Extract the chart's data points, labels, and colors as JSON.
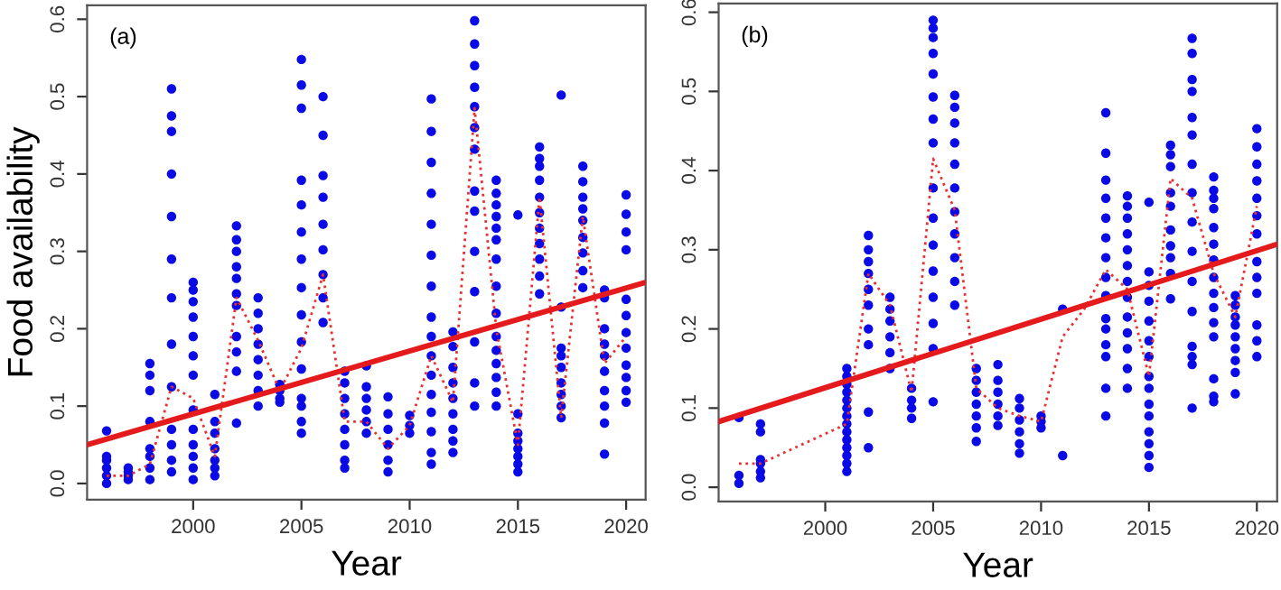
{
  "chart_data": [
    {
      "type": "scatter",
      "title": null,
      "annotations": [
        "(a)"
      ],
      "xlabel": "Year",
      "ylabel": "Food availability",
      "xlim": [
        1995.1,
        2020.9
      ],
      "ylim": [
        -0.021,
        0.618
      ],
      "xticks": [
        2000,
        2005,
        2010,
        2015,
        2020
      ],
      "yticks": [
        {
          "value": 0,
          "label": "0.0"
        },
        0.1,
        0.2,
        0.3,
        0.4,
        0.5,
        0.6
      ],
      "grid": false,
      "legend": false,
      "series": [
        {
          "color": "#0a0ae6",
          "marker": "circle",
          "x": [
            1996,
            1996,
            1996,
            1996,
            1996,
            1996,
            1997,
            1997,
            1997,
            1997,
            1998,
            1998,
            1998,
            1998,
            1998,
            1998,
            1998,
            1998,
            1999,
            1999,
            1999,
            1999,
            1999,
            1999,
            1999,
            1999,
            1999,
            1999,
            1999,
            1999,
            1999,
            2000,
            2000,
            2000,
            2000,
            2000,
            2000,
            2000,
            2000,
            2000,
            2000,
            2000,
            2000,
            2000,
            2001,
            2001,
            2001,
            2001,
            2001,
            2001,
            2001,
            2002,
            2002,
            2002,
            2002,
            2002,
            2002,
            2002,
            2002,
            2002,
            2002,
            2002,
            2003,
            2003,
            2003,
            2003,
            2003,
            2003,
            2003,
            2003,
            2004,
            2004,
            2004,
            2004,
            2005,
            2005,
            2005,
            2005,
            2005,
            2005,
            2005,
            2005,
            2005,
            2005,
            2005,
            2005,
            2005,
            2005,
            2005,
            2006,
            2006,
            2006,
            2006,
            2006,
            2006,
            2006,
            2006,
            2006,
            2007,
            2007,
            2007,
            2007,
            2007,
            2007,
            2007,
            2007,
            2008,
            2008,
            2008,
            2008,
            2008,
            2008,
            2009,
            2009,
            2009,
            2009,
            2009,
            2009,
            2010,
            2010,
            2010,
            2011,
            2011,
            2011,
            2011,
            2011,
            2011,
            2011,
            2011,
            2011,
            2011,
            2011,
            2011,
            2011,
            2011,
            2011,
            2011,
            2012,
            2012,
            2012,
            2012,
            2012,
            2012,
            2012,
            2012,
            2012,
            2013,
            2013,
            2013,
            2013,
            2013,
            2013,
            2013,
            2013,
            2013,
            2013,
            2013,
            2013,
            2013,
            2013,
            2014,
            2014,
            2014,
            2014,
            2014,
            2014,
            2014,
            2014,
            2014,
            2014,
            2014,
            2014,
            2014,
            2014,
            2014,
            2015,
            2015,
            2015,
            2015,
            2015,
            2015,
            2015,
            2015,
            2016,
            2016,
            2016,
            2016,
            2016,
            2016,
            2016,
            2016,
            2016,
            2016,
            2016,
            2017,
            2017,
            2017,
            2017,
            2017,
            2017,
            2017,
            2017,
            2017,
            2018,
            2018,
            2018,
            2018,
            2018,
            2018,
            2018,
            2018,
            2018,
            2019,
            2019,
            2019,
            2019,
            2019,
            2019,
            2019,
            2019,
            2019,
            2019,
            2020,
            2020,
            2020,
            2020,
            2020,
            2020,
            2020,
            2020,
            2020,
            2020,
            2020,
            2020
          ],
          "values": [
            0.0,
            0.01,
            0.02,
            0.03,
            0.035,
            0.068,
            0.005,
            0.01,
            0.015,
            0.02,
            0.005,
            0.02,
            0.035,
            0.045,
            0.08,
            0.12,
            0.14,
            0.155,
            0.015,
            0.03,
            0.05,
            0.07,
            0.125,
            0.18,
            0.24,
            0.29,
            0.345,
            0.4,
            0.455,
            0.475,
            0.51,
            0.005,
            0.02,
            0.035,
            0.05,
            0.07,
            0.095,
            0.14,
            0.165,
            0.19,
            0.215,
            0.235,
            0.25,
            0.26,
            0.01,
            0.02,
            0.03,
            0.045,
            0.065,
            0.08,
            0.115,
            0.078,
            0.145,
            0.17,
            0.19,
            0.23,
            0.245,
            0.265,
            0.28,
            0.3,
            0.315,
            0.333,
            0.1,
            0.12,
            0.14,
            0.16,
            0.18,
            0.2,
            0.22,
            0.24,
            0.105,
            0.11,
            0.12,
            0.128,
            0.065,
            0.08,
            0.1,
            0.11,
            0.148,
            0.183,
            0.218,
            0.253,
            0.29,
            0.325,
            0.36,
            0.392,
            0.485,
            0.515,
            0.548,
            0.208,
            0.24,
            0.27,
            0.302,
            0.335,
            0.37,
            0.398,
            0.45,
            0.5,
            0.02,
            0.03,
            0.05,
            0.07,
            0.09,
            0.11,
            0.13,
            0.145,
            0.065,
            0.08,
            0.095,
            0.11,
            0.125,
            0.152,
            0.015,
            0.03,
            0.05,
            0.07,
            0.09,
            0.112,
            0.065,
            0.075,
            0.088,
            0.025,
            0.04,
            0.067,
            0.092,
            0.115,
            0.14,
            0.165,
            0.19,
            0.215,
            0.255,
            0.295,
            0.335,
            0.375,
            0.415,
            0.455,
            0.497,
            0.04,
            0.055,
            0.07,
            0.09,
            0.11,
            0.13,
            0.15,
            0.177,
            0.196,
            0.1,
            0.13,
            0.183,
            0.248,
            0.3,
            0.352,
            0.378,
            0.432,
            0.46,
            0.487,
            0.512,
            0.54,
            0.568,
            0.598,
            0.1,
            0.118,
            0.137,
            0.155,
            0.172,
            0.19,
            0.22,
            0.255,
            0.29,
            0.315,
            0.33,
            0.345,
            0.36,
            0.375,
            0.392,
            0.015,
            0.025,
            0.035,
            0.045,
            0.055,
            0.065,
            0.09,
            0.347,
            0.245,
            0.268,
            0.29,
            0.31,
            0.33,
            0.35,
            0.37,
            0.392,
            0.41,
            0.42,
            0.435,
            0.085,
            0.1,
            0.115,
            0.13,
            0.15,
            0.165,
            0.175,
            0.228,
            0.502,
            0.253,
            0.275,
            0.298,
            0.318,
            0.34,
            0.355,
            0.37,
            0.39,
            0.41,
            0.038,
            0.078,
            0.1,
            0.12,
            0.145,
            0.165,
            0.18,
            0.2,
            0.24,
            0.25,
            0.105,
            0.12,
            0.137,
            0.153,
            0.175,
            0.195,
            0.217,
            0.238,
            0.302,
            0.325,
            0.348,
            0.373
          ]
        },
        {
          "type": "line",
          "color": "#e83030",
          "line_style": "dotted",
          "x": [
            1996,
            1997,
            1998,
            1999,
            2000,
            2001,
            2002,
            2003,
            2004,
            2005,
            2006,
            2007,
            2008,
            2009,
            2010,
            2011,
            2012,
            2013,
            2014,
            2015,
            2016,
            2017,
            2018,
            2019,
            2020
          ],
          "values": [
            0.01,
            0.01,
            0.025,
            0.125,
            0.11,
            0.035,
            0.24,
            0.185,
            0.12,
            0.175,
            0.27,
            0.08,
            0.08,
            0.045,
            0.075,
            0.165,
            0.105,
            0.485,
            0.2,
            0.05,
            0.37,
            0.085,
            0.345,
            0.155,
            0.19
          ]
        },
        {
          "type": "line",
          "color": "#e41a1c",
          "line_style": "solid",
          "x": [
            1995.1,
            2020.9
          ],
          "values": [
            0.05,
            0.26
          ]
        }
      ]
    },
    {
      "type": "scatter",
      "title": null,
      "annotations": [
        "(b)"
      ],
      "xlabel": "Year",
      "xlim": [
        1995.06,
        2020.94
      ],
      "ylim": [
        -0.018,
        0.611
      ],
      "xticks": [
        2000,
        2005,
        2010,
        2015,
        2020
      ],
      "yticks": [
        {
          "value": 0,
          "label": "0.0"
        },
        0.1,
        0.2,
        0.3,
        0.4,
        0.5,
        0.6
      ],
      "grid": false,
      "legend": false,
      "series": [
        {
          "color": "#0a0ae6",
          "marker": "circle",
          "x": [
            1996,
            1996,
            1996,
            1997,
            1997,
            1997,
            1997,
            1997,
            1997,
            2001,
            2001,
            2001,
            2001,
            2001,
            2001,
            2001,
            2001,
            2001,
            2001,
            2001,
            2001,
            2001,
            2001,
            2002,
            2002,
            2002,
            2002,
            2002,
            2002,
            2002,
            2002,
            2002,
            2002,
            2003,
            2003,
            2003,
            2003,
            2003,
            2003,
            2004,
            2004,
            2004,
            2004,
            2005,
            2005,
            2005,
            2005,
            2005,
            2005,
            2005,
            2005,
            2005,
            2005,
            2005,
            2005,
            2005,
            2005,
            2005,
            2005,
            2006,
            2006,
            2006,
            2006,
            2006,
            2006,
            2006,
            2006,
            2006,
            2006,
            2006,
            2007,
            2007,
            2007,
            2007,
            2007,
            2007,
            2007,
            2008,
            2008,
            2008,
            2008,
            2008,
            2008,
            2009,
            2009,
            2009,
            2009,
            2009,
            2009,
            2010,
            2010,
            2010,
            2011,
            2011,
            2013,
            2013,
            2013,
            2013,
            2013,
            2013,
            2013,
            2013,
            2013,
            2013,
            2013,
            2013,
            2013,
            2013,
            2013,
            2014,
            2014,
            2014,
            2014,
            2014,
            2014,
            2014,
            2014,
            2014,
            2014,
            2014,
            2014,
            2014,
            2015,
            2015,
            2015,
            2015,
            2015,
            2015,
            2015,
            2015,
            2015,
            2015,
            2015,
            2015,
            2015,
            2015,
            2015,
            2016,
            2016,
            2016,
            2016,
            2016,
            2016,
            2016,
            2016,
            2016,
            2016,
            2017,
            2017,
            2017,
            2017,
            2017,
            2017,
            2017,
            2017,
            2017,
            2017,
            2017,
            2017,
            2017,
            2017,
            2017,
            2017,
            2018,
            2018,
            2018,
            2018,
            2018,
            2018,
            2018,
            2018,
            2018,
            2018,
            2018,
            2018,
            2018,
            2018,
            2018,
            2019,
            2019,
            2019,
            2019,
            2019,
            2019,
            2019,
            2019,
            2019,
            2020,
            2020,
            2020,
            2020,
            2020,
            2020,
            2020,
            2020,
            2020,
            2020,
            2020,
            2020,
            2020
          ],
          "values": [
            0.005,
            0.015,
            0.088,
            0.012,
            0.02,
            0.03,
            0.035,
            0.07,
            0.08,
            0.02,
            0.03,
            0.04,
            0.05,
            0.06,
            0.07,
            0.08,
            0.09,
            0.1,
            0.11,
            0.12,
            0.13,
            0.14,
            0.15,
            0.05,
            0.095,
            0.18,
            0.2,
            0.23,
            0.25,
            0.27,
            0.285,
            0.3,
            0.318,
            0.15,
            0.17,
            0.19,
            0.21,
            0.225,
            0.24,
            0.087,
            0.1,
            0.11,
            0.125,
            0.108,
            0.175,
            0.207,
            0.24,
            0.273,
            0.306,
            0.34,
            0.378,
            0.435,
            0.465,
            0.493,
            0.522,
            0.548,
            0.568,
            0.58,
            0.59,
            0.23,
            0.26,
            0.29,
            0.32,
            0.348,
            0.378,
            0.408,
            0.435,
            0.46,
            0.48,
            0.495,
            0.058,
            0.075,
            0.09,
            0.105,
            0.12,
            0.135,
            0.15,
            0.078,
            0.09,
            0.105,
            0.12,
            0.135,
            0.155,
            0.043,
            0.055,
            0.07,
            0.085,
            0.1,
            0.112,
            0.075,
            0.083,
            0.09,
            0.04,
            0.225,
            0.09,
            0.125,
            0.165,
            0.18,
            0.2,
            0.213,
            0.242,
            0.265,
            0.29,
            0.315,
            0.34,
            0.365,
            0.388,
            0.422,
            0.473,
            0.125,
            0.15,
            0.175,
            0.195,
            0.215,
            0.24,
            0.26,
            0.28,
            0.3,
            0.32,
            0.34,
            0.355,
            0.368,
            0.025,
            0.04,
            0.055,
            0.07,
            0.09,
            0.105,
            0.125,
            0.14,
            0.165,
            0.185,
            0.21,
            0.235,
            0.255,
            0.272,
            0.36,
            0.238,
            0.27,
            0.29,
            0.305,
            0.325,
            0.355,
            0.372,
            0.405,
            0.42,
            0.432,
            0.1,
            0.155,
            0.165,
            0.178,
            0.222,
            0.26,
            0.298,
            0.335,
            0.372,
            0.408,
            0.445,
            0.467,
            0.5,
            0.515,
            0.548,
            0.567,
            0.108,
            0.115,
            0.137,
            0.19,
            0.208,
            0.227,
            0.245,
            0.265,
            0.287,
            0.307,
            0.328,
            0.352,
            0.365,
            0.375,
            0.392,
            0.118,
            0.145,
            0.16,
            0.175,
            0.19,
            0.205,
            0.215,
            0.23,
            0.242,
            0.165,
            0.185,
            0.205,
            0.245,
            0.265,
            0.285,
            0.32,
            0.343,
            0.365,
            0.387,
            0.408,
            0.43,
            0.453
          ]
        },
        {
          "type": "line",
          "color": "#e83030",
          "line_style": "dotted",
          "x": [
            1996,
            1997,
            2001,
            2002,
            2003,
            2004,
            2005,
            2006,
            2007,
            2008,
            2009,
            2010,
            2011,
            2012,
            2013,
            2014,
            2015,
            2016,
            2017,
            2018,
            2019,
            2020
          ],
          "values": [
            0.03,
            0.03,
            0.08,
            0.27,
            0.23,
            0.12,
            0.415,
            0.35,
            0.125,
            0.1,
            0.09,
            0.083,
            0.19,
            0.225,
            0.275,
            0.25,
            0.14,
            0.39,
            0.365,
            0.27,
            0.215,
            0.355
          ]
        },
        {
          "type": "line",
          "color": "#e41a1c",
          "line_style": "solid",
          "x": [
            1995.06,
            2020.94
          ],
          "values": [
            0.083,
            0.307
          ]
        }
      ]
    }
  ]
}
